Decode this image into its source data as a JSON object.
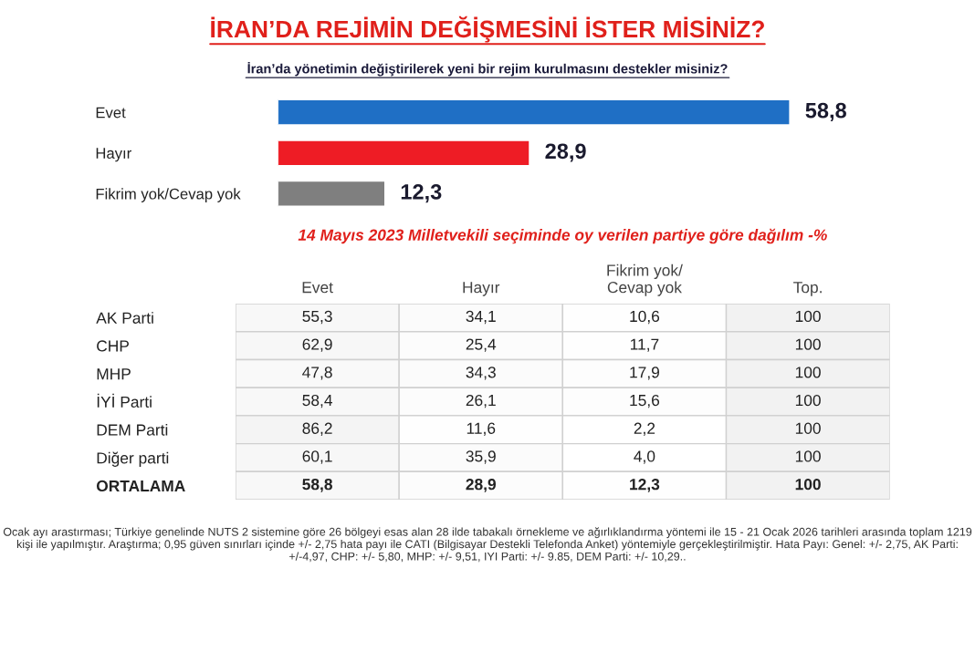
{
  "chart_data": [
    {
      "type": "bar",
      "orientation": "horizontal",
      "title": "İRAN’DA REJİMİN DEĞİŞMESİNİ İSTER MİSİNİZ?",
      "subtitle": "İran’da yönetimin değiştirilerek yeni bir rejim kurulmasını destekler misiniz?",
      "categories": [
        "Evet",
        "Hayır",
        "Fikrim yok/Cevap yok"
      ],
      "values": [
        58.8,
        28.9,
        12.3
      ],
      "colors": [
        "#1f6fc5",
        "#ee1c25",
        "#7f7f7f"
      ],
      "value_labels": [
        "58,8",
        "28,9",
        "12,3"
      ]
    },
    {
      "type": "heatmap",
      "title": "14 Mayıs 2023 Milletvekili seçiminde oy verilen partiye göre dağılım -%",
      "categories": [
        "Evet",
        "Hayır",
        "Fikrim yok/\nCevap yok",
        "Top."
      ],
      "y_categories": [
        "AK Parti",
        "CHP",
        "MHP",
        "İYİ Parti",
        "DEM Parti",
        "Diğer parti",
        "ORTALAMA"
      ],
      "cells": [
        [
          55.3,
          34.1,
          10.6,
          100
        ],
        [
          62.9,
          25.4,
          11.7,
          100
        ],
        [
          47.8,
          34.3,
          17.9,
          100
        ],
        [
          58.4,
          26.1,
          15.6,
          100
        ],
        [
          86.2,
          11.6,
          2.2,
          100
        ],
        [
          60.1,
          35.9,
          4.0,
          100
        ],
        [
          58.8,
          28.9,
          12.3,
          100
        ]
      ],
      "cell_labels": [
        [
          "55,3",
          "34,1",
          "10,6",
          "100"
        ],
        [
          "62,9",
          "25,4",
          "11,7",
          "100"
        ],
        [
          "47,8",
          "34,3",
          "17,9",
          "100"
        ],
        [
          "58,4",
          "26,1",
          "15,6",
          "100"
        ],
        [
          "86,2",
          "11,6",
          "2,2",
          "100"
        ],
        [
          "60,1",
          "35,9",
          "4,0",
          "100"
        ],
        [
          "58,8",
          "28,9",
          "12,3",
          "100"
        ]
      ],
      "color": "#ffffff",
      "annotations": [
        "Ocak ayı arastırması; Türkiye genelinde NUTS 2 sistemine göre 26 bölgeyi esas alan 28 ilde tabakalı örnekleme ve ağırlıklandırma yöntemi ile 15 - 21 Ocak 2026 tarihleri arasında toplam 1219 kişi ile yapılmıştır. Araştırma; 0,95 güven sınırları içinde +/- 2,75 hata payı ile CATI (Bilgisayar Destekli Telefonda Anket) yöntemiyle gerçekleştirilmiştir. Hata Payı: Genel: +/- 2,75, AK Parti: +/-4,97, CHP: +/- 5,80, MHP: +/- 9,51, IYI Parti: +/- 9.85, DEM Parti: +/- 10,29.."
      ]
    }
  ]
}
